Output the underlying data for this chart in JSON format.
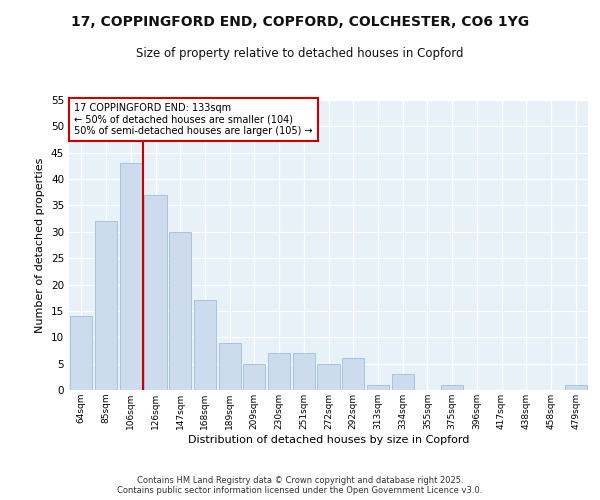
{
  "title_line1": "17, COPPINGFORD END, COPFORD, COLCHESTER, CO6 1YG",
  "title_line2": "Size of property relative to detached houses in Copford",
  "xlabel": "Distribution of detached houses by size in Copford",
  "ylabel": "Number of detached properties",
  "categories": [
    "64sqm",
    "85sqm",
    "106sqm",
    "126sqm",
    "147sqm",
    "168sqm",
    "189sqm",
    "209sqm",
    "230sqm",
    "251sqm",
    "272sqm",
    "292sqm",
    "313sqm",
    "334sqm",
    "355sqm",
    "375sqm",
    "396sqm",
    "417sqm",
    "438sqm",
    "458sqm",
    "479sqm"
  ],
  "values": [
    14,
    32,
    43,
    37,
    30,
    17,
    9,
    5,
    7,
    7,
    5,
    6,
    1,
    3,
    0,
    1,
    0,
    0,
    0,
    0,
    1
  ],
  "bar_color": "#ccdcee",
  "bar_edge_color": "#a8c4dc",
  "background_color": "#e8f0f8",
  "grid_color": "#ffffff",
  "vline_x_index": 3,
  "vline_color": "#cc0000",
  "annotation_text": "17 COPPINGFORD END: 133sqm\n← 50% of detached houses are smaller (104)\n50% of semi-detached houses are larger (105) →",
  "annotation_box_color": "#ffffff",
  "annotation_box_edge_color": "#cc0000",
  "ylim": [
    0,
    55
  ],
  "yticks": [
    0,
    5,
    10,
    15,
    20,
    25,
    30,
    35,
    40,
    45,
    50,
    55
  ],
  "footer_line1": "Contains HM Land Registry data © Crown copyright and database right 2025.",
  "footer_line2": "Contains public sector information licensed under the Open Government Licence v3.0."
}
